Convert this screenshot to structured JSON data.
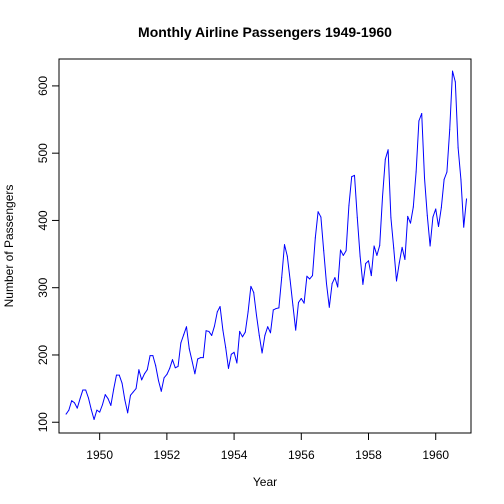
{
  "chart_data": {
    "type": "line",
    "title": "Monthly Airline Passengers 1949-1960",
    "xlabel": "Year",
    "ylabel": "Number of Passengers",
    "xlim": [
      1948.79,
      1961.05
    ],
    "ylim": [
      84,
      640
    ],
    "x_ticks": [
      "1950",
      "1952",
      "1954",
      "1956",
      "1958",
      "1960"
    ],
    "y_ticks": [
      "100",
      "200",
      "300",
      "400",
      "500",
      "600"
    ],
    "x_start": 1949,
    "x_step": 0.08333333,
    "grid": false,
    "legend": "none",
    "series": [
      {
        "color": "#0000ff",
        "values": [
          112,
          118,
          132,
          129,
          121,
          135,
          148,
          148,
          136,
          119,
          104,
          118,
          115,
          126,
          141,
          135,
          125,
          149,
          170,
          170,
          158,
          133,
          114,
          140,
          145,
          150,
          178,
          163,
          172,
          178,
          199,
          199,
          184,
          162,
          146,
          166,
          171,
          180,
          193,
          181,
          183,
          218,
          230,
          242,
          209,
          191,
          172,
          194,
          196,
          196,
          236,
          235,
          229,
          243,
          264,
          272,
          237,
          211,
          180,
          201,
          204,
          188,
          235,
          227,
          234,
          264,
          302,
          293,
          259,
          229,
          203,
          229,
          242,
          233,
          267,
          269,
          270,
          315,
          364,
          347,
          312,
          274,
          237,
          278,
          284,
          277,
          317,
          313,
          318,
          374,
          413,
          405,
          355,
          306,
          271,
          306,
          315,
          301,
          356,
          348,
          355,
          422,
          465,
          467,
          404,
          347,
          305,
          336,
          340,
          318,
          362,
          348,
          363,
          435,
          491,
          505,
          404,
          359,
          310,
          337,
          360,
          342,
          406,
          396,
          420,
          472,
          548,
          559,
          463,
          407,
          362,
          405,
          417,
          391,
          419,
          461,
          472,
          535,
          622,
          606,
          508,
          461,
          390,
          432
        ]
      }
    ]
  }
}
